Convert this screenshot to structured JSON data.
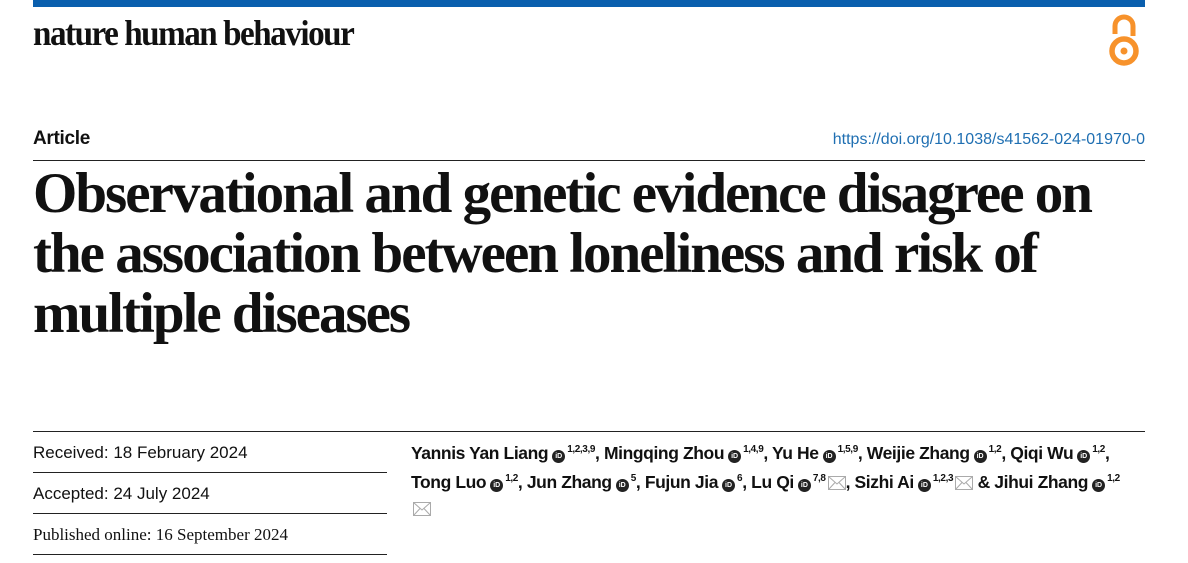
{
  "colors": {
    "brand_bar": "#0a5fae",
    "open_access": "#f7922b",
    "doi_link": "#1f6fb2"
  },
  "header": {
    "journal": "nature human behaviour",
    "open_access_icon": "open-access-icon"
  },
  "article_type": "Article",
  "doi": "https://doi.org/10.1038/s41562-024-01970-0",
  "title": "Observational and genetic evidence disagree on the association between loneliness and risk of multiple diseases",
  "dates": {
    "received": "Received: 18 February 2024",
    "accepted": "Accepted: 24 July 2024",
    "published": "Published online: 16 September 2024"
  },
  "authors": [
    {
      "name": "Yannis Yan Liang",
      "aff": "1,2,3,9",
      "sep": ", ",
      "mail": false
    },
    {
      "name": "Mingqing Zhou",
      "aff": "1,4,9",
      "sep": ", ",
      "mail": false
    },
    {
      "name": "Yu He",
      "aff": "1,5,9",
      "sep": ", ",
      "mail": false
    },
    {
      "name": "Weijie Zhang",
      "aff": "1,2",
      "sep": ", ",
      "mail": false
    },
    {
      "name": "Qiqi Wu",
      "aff": "1,2",
      "sep": ", ",
      "mail": false
    },
    {
      "name": "Tong Luo",
      "aff": "1,2",
      "sep": ", ",
      "mail": false
    },
    {
      "name": "Jun Zhang",
      "aff": "5",
      "sep": ", ",
      "mail": false
    },
    {
      "name": "Fujun Jia",
      "aff": "6",
      "sep": ", ",
      "mail": false
    },
    {
      "name": "Lu Qi",
      "aff": "7,8",
      "sep": ", ",
      "mail": true
    },
    {
      "name": "Sizhi Ai",
      "aff": "1,2,3",
      "sep": " & ",
      "mail": true
    },
    {
      "name": "Jihui Zhang",
      "aff": "1,2",
      "sep": "",
      "mail": true
    }
  ]
}
